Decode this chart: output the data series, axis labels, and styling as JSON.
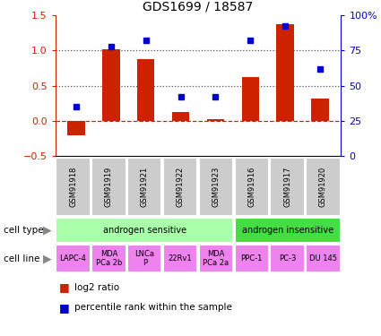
{
  "title": "GDS1699 / 18587",
  "samples": [
    "GSM91918",
    "GSM91919",
    "GSM91921",
    "GSM91922",
    "GSM91923",
    "GSM91916",
    "GSM91917",
    "GSM91920"
  ],
  "log2_ratio": [
    -0.2,
    1.02,
    0.87,
    0.13,
    0.02,
    0.62,
    1.37,
    0.32
  ],
  "percentile_rank": [
    35,
    78,
    82,
    42,
    42,
    82,
    92,
    62
  ],
  "cell_types": [
    {
      "label": "androgen sensitive",
      "span": [
        0,
        5
      ],
      "color": "#aaffaa"
    },
    {
      "label": "androgen insensitive",
      "span": [
        5,
        8
      ],
      "color": "#44dd44"
    }
  ],
  "cell_lines": [
    {
      "label": "LAPC-4",
      "span": [
        0,
        1
      ]
    },
    {
      "label": "MDA\nPCa 2b",
      "span": [
        1,
        2
      ]
    },
    {
      "label": "LNCa\nP",
      "span": [
        2,
        3
      ]
    },
    {
      "label": "22Rv1",
      "span": [
        3,
        4
      ]
    },
    {
      "label": "MDA\nPCa 2a",
      "span": [
        4,
        5
      ]
    },
    {
      "label": "PPC-1",
      "span": [
        5,
        6
      ]
    },
    {
      "label": "PC-3",
      "span": [
        6,
        7
      ]
    },
    {
      "label": "DU 145",
      "span": [
        7,
        8
      ]
    }
  ],
  "cell_line_color": "#ee82ee",
  "bar_color": "#cc2200",
  "dot_color": "#0000cc",
  "ylim_left": [
    -0.5,
    1.5
  ],
  "ylim_right": [
    0,
    100
  ],
  "yticks_left": [
    -0.5,
    0.0,
    0.5,
    1.0,
    1.5
  ],
  "yticks_right": [
    0,
    25,
    50,
    75,
    100
  ],
  "ytick_labels_right": [
    "0",
    "25",
    "50",
    "75",
    "100%"
  ],
  "hlines": [
    0.0,
    0.5,
    1.0
  ],
  "hline_styles": [
    "--",
    ":",
    ":"
  ],
  "hline_colors": [
    "#cc2200",
    "#555555",
    "#555555"
  ],
  "gsm_box_color": "#cccccc"
}
